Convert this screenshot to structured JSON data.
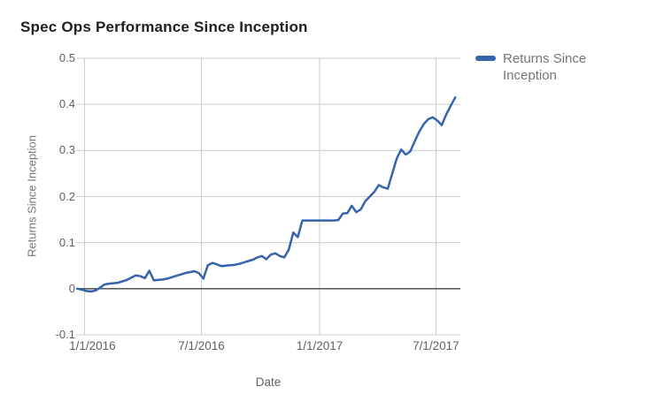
{
  "chart_data": {
    "type": "line",
    "title": "Spec Ops Performance Since Inception",
    "xlabel": "Date",
    "ylabel": "Returns Since Inception",
    "legend": {
      "position": "right",
      "entries": [
        "Returns Since Inception"
      ]
    },
    "grid": true,
    "ylim": [
      -0.1,
      0.5
    ],
    "y_ticks": [
      "0.5",
      "0.4",
      "0.3",
      "0.2",
      "0.1",
      "0",
      "-0.1"
    ],
    "x_ticks": [
      "1/1/2016",
      "7/1/2016",
      "1/1/2017",
      "7/1/2017"
    ],
    "x_domain": [
      "12/19/2015",
      "8/8/2017"
    ],
    "series": [
      {
        "name": "Returns Since Inception",
        "color": "#3763ac",
        "start_date": "12/21/2015",
        "interval_days": 7,
        "values": [
          0.0,
          -0.002,
          -0.005,
          -0.006,
          -0.004,
          0.002,
          0.009,
          0.011,
          0.012,
          0.013,
          0.016,
          0.019,
          0.024,
          0.029,
          0.027,
          0.023,
          0.039,
          0.018,
          0.019,
          0.02,
          0.022,
          0.025,
          0.028,
          0.031,
          0.034,
          0.036,
          0.038,
          0.034,
          0.022,
          0.051,
          0.056,
          0.053,
          0.049,
          0.05,
          0.051,
          0.052,
          0.054,
          0.057,
          0.06,
          0.063,
          0.068,
          0.071,
          0.064,
          0.074,
          0.077,
          0.071,
          0.068,
          0.085,
          0.122,
          0.112,
          0.148,
          0.148,
          0.148,
          0.148,
          0.148,
          0.148,
          0.148,
          0.148,
          0.149,
          0.163,
          0.164,
          0.18,
          0.166,
          0.172,
          0.19,
          0.2,
          0.21,
          0.225,
          0.22,
          0.217,
          0.25,
          0.283,
          0.302,
          0.291,
          0.298,
          0.32,
          0.341,
          0.357,
          0.368,
          0.372,
          0.365,
          0.355,
          0.378,
          0.397,
          0.415
        ]
      }
    ],
    "colors": {
      "line": "#3763ac",
      "grid": "#cccccc",
      "zero_line": "#424242",
      "title_text": "#212121",
      "axis_text": "#616161",
      "legend_text": "#757575",
      "background": "#ffffff"
    }
  }
}
